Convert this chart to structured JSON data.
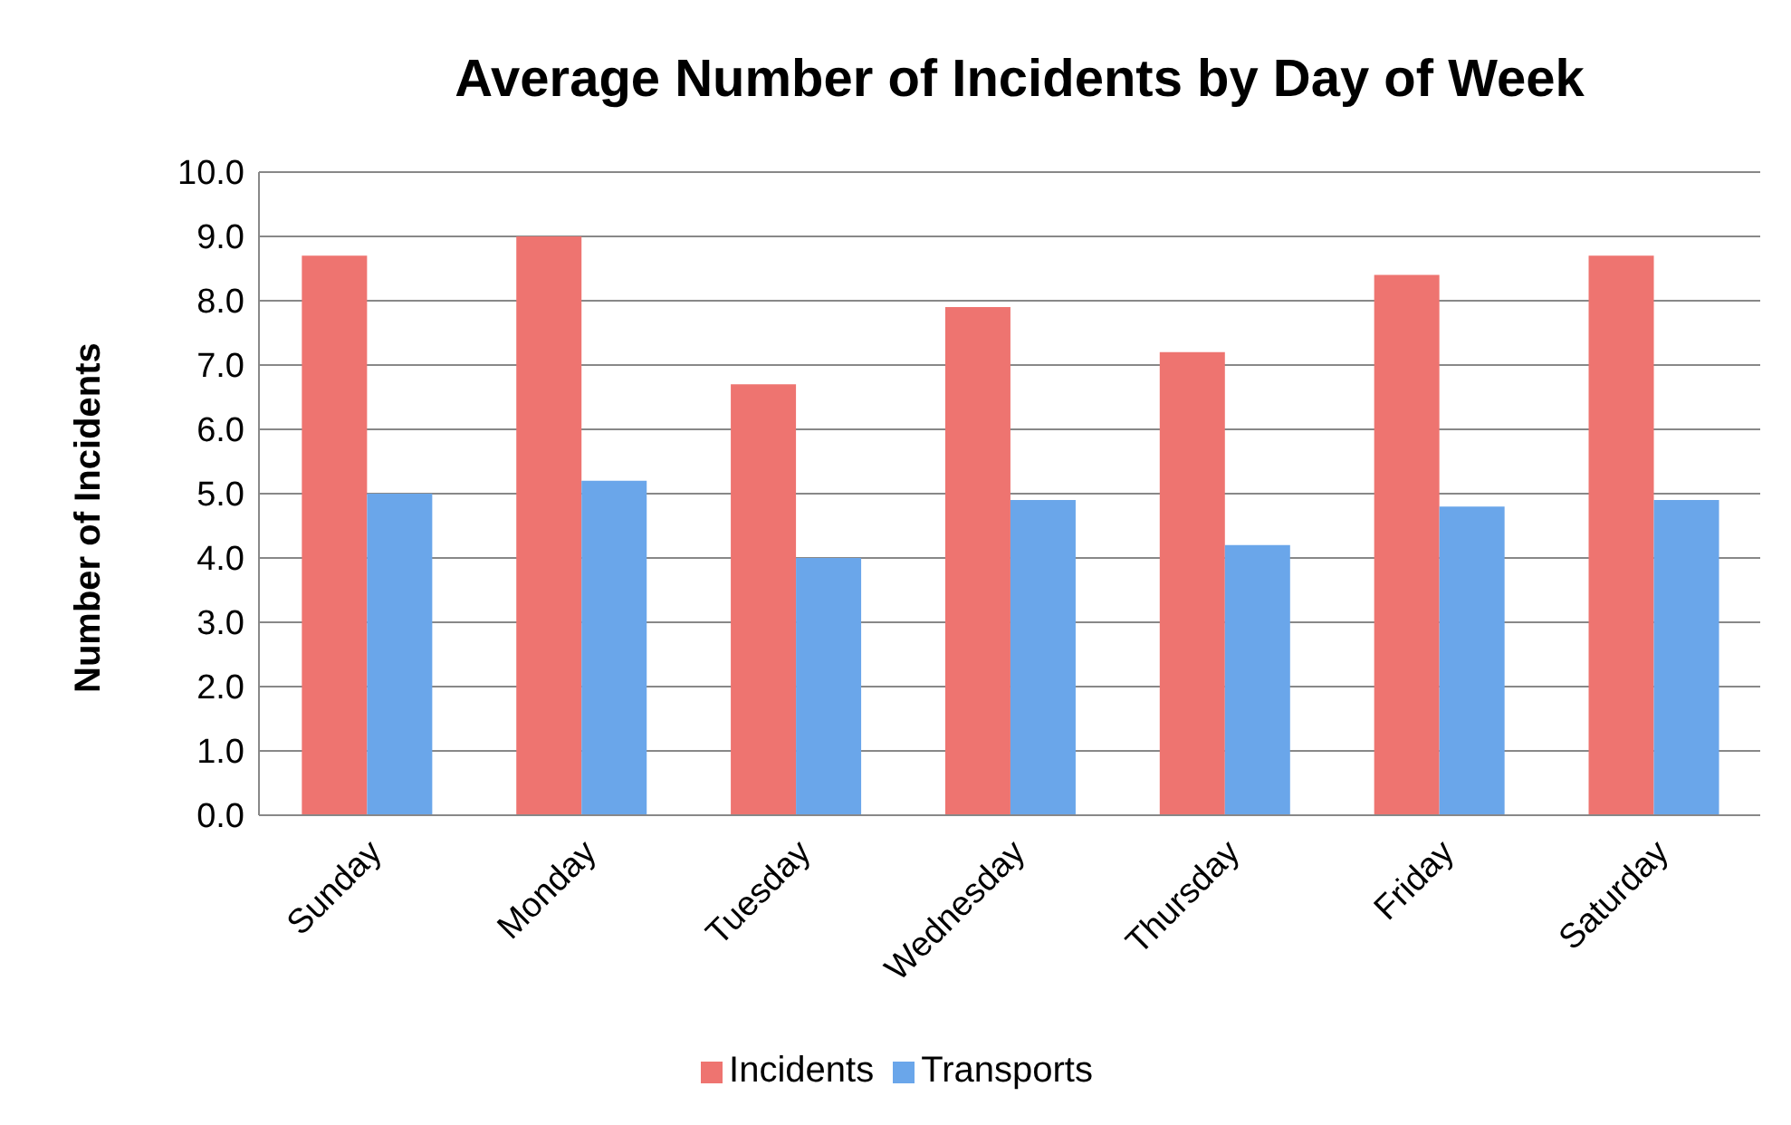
{
  "chart_data": {
    "type": "bar",
    "title": "Average Number of Incidents by Day of Week",
    "ylabel": "Number of Incidents",
    "categories": [
      "Sunday",
      "Monday",
      "Tuesday",
      "Wednesday",
      "Thursday",
      "Friday",
      "Saturday"
    ],
    "series": [
      {
        "name": "Incidents",
        "color": "#ee7470",
        "values": [
          8.7,
          9.0,
          6.7,
          7.9,
          7.2,
          8.4,
          8.7
        ]
      },
      {
        "name": "Transports",
        "color": "#6aa6ea",
        "values": [
          5.0,
          5.2,
          4.0,
          4.9,
          4.2,
          4.8,
          4.9
        ]
      }
    ],
    "ylim": [
      0,
      10
    ],
    "yticks": [
      {
        "value": 0,
        "label": "0.0"
      },
      {
        "value": 1,
        "label": "1.0"
      },
      {
        "value": 2,
        "label": "2.0"
      },
      {
        "value": 3,
        "label": "3.0"
      },
      {
        "value": 4,
        "label": "4.0"
      },
      {
        "value": 5,
        "label": "5.0"
      },
      {
        "value": 6,
        "label": "6.0"
      },
      {
        "value": 7,
        "label": "7.0"
      },
      {
        "value": 8,
        "label": "8.0"
      },
      {
        "value": 9,
        "label": "9.0"
      },
      {
        "value": 10,
        "label": "10.0"
      }
    ],
    "grid": "y",
    "legend": "bottom"
  }
}
